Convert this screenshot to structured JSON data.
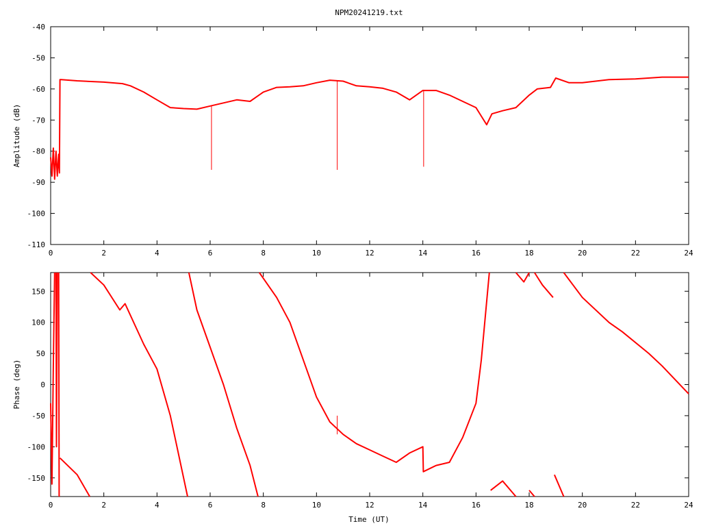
{
  "chart_data": [
    {
      "type": "line",
      "title": "NPM20241219.txt",
      "xlabel": "",
      "ylabel": "Amplitude (dB)",
      "xlim": [
        0,
        24
      ],
      "ylim": [
        -110,
        -40
      ],
      "xticks": [
        0,
        2,
        4,
        6,
        8,
        10,
        12,
        14,
        16,
        18,
        20,
        22,
        24
      ],
      "yticks": [
        -110,
        -100,
        -90,
        -80,
        -70,
        -60,
        -50,
        -40
      ],
      "grid": false,
      "series": [
        {
          "color": "#ff0000",
          "points": [
            [
              0.0,
              -82
            ],
            [
              0.05,
              -88
            ],
            [
              0.1,
              -79
            ],
            [
              0.15,
              -89
            ],
            [
              0.2,
              -80
            ],
            [
              0.25,
              -88
            ],
            [
              0.3,
              -81
            ],
            [
              0.33,
              -87
            ],
            [
              0.35,
              -57
            ],
            [
              0.4,
              -57
            ],
            [
              1.0,
              -57.4
            ],
            [
              2.0,
              -57.8
            ],
            [
              2.7,
              -58.3
            ],
            [
              3.0,
              -59
            ],
            [
              3.5,
              -61
            ],
            [
              4.0,
              -63.5
            ],
            [
              4.5,
              -66
            ],
            [
              5.0,
              -66.3
            ],
            [
              5.5,
              -66.5
            ],
            [
              6.0,
              -65.5
            ],
            [
              6.5,
              -64.5
            ],
            [
              7.0,
              -63.5
            ],
            [
              7.5,
              -64
            ],
            [
              8.0,
              -61
            ],
            [
              8.5,
              -59.5
            ],
            [
              9.0,
              -59.3
            ],
            [
              9.5,
              -59
            ],
            [
              10.0,
              -58
            ],
            [
              10.5,
              -57.2
            ],
            [
              11.0,
              -57.5
            ],
            [
              11.5,
              -59
            ],
            [
              12.0,
              -59.3
            ],
            [
              12.5,
              -59.8
            ],
            [
              13.0,
              -61
            ],
            [
              13.5,
              -63.5
            ],
            [
              14.0,
              -60.5
            ],
            [
              14.5,
              -60.5
            ],
            [
              15.0,
              -62
            ],
            [
              15.5,
              -64
            ],
            [
              16.0,
              -66
            ],
            [
              16.4,
              -71.5
            ],
            [
              16.6,
              -68
            ],
            [
              17.0,
              -67
            ],
            [
              17.5,
              -66
            ],
            [
              18.0,
              -62
            ],
            [
              18.3,
              -60
            ],
            [
              18.8,
              -59.5
            ],
            [
              19.0,
              -56.5
            ],
            [
              19.5,
              -58
            ],
            [
              20.0,
              -58
            ],
            [
              21.0,
              -57
            ],
            [
              22.0,
              -56.8
            ],
            [
              23.0,
              -56.2
            ],
            [
              24.0,
              -56.2
            ]
          ],
          "spikes": [
            [
              6.05,
              -86
            ],
            [
              10.78,
              -86
            ],
            [
              14.03,
              -85
            ]
          ]
        }
      ]
    },
    {
      "type": "line",
      "title": "",
      "xlabel": "Time (UT)",
      "ylabel": "Phase (deg)",
      "xlim": [
        0,
        24
      ],
      "ylim": [
        -180,
        180
      ],
      "xticks": [
        0,
        2,
        4,
        6,
        8,
        10,
        12,
        14,
        16,
        18,
        20,
        22,
        24
      ],
      "yticks": [
        -150,
        -100,
        -50,
        0,
        50,
        100,
        150
      ],
      "grid": false,
      "series": [
        {
          "color": "#ff0000",
          "segments": [
            [
              [
                0.0,
                -30
              ],
              [
                0.05,
                -160
              ],
              [
                0.1,
                30
              ],
              [
                0.15,
                180
              ]
            ],
            [
              [
                0.2,
                180
              ],
              [
                0.22,
                -100
              ],
              [
                0.25,
                180
              ]
            ],
            [
              [
                0.3,
                180
              ],
              [
                0.32,
                -180
              ]
            ],
            [
              [
                0.35,
                -118
              ],
              [
                1.0,
                -145
              ],
              [
                1.47,
                -180
              ]
            ],
            [
              [
                1.5,
                180
              ],
              [
                2.0,
                160
              ],
              [
                2.6,
                120
              ],
              [
                2.8,
                130
              ],
              [
                3.5,
                65
              ],
              [
                4.0,
                25
              ],
              [
                4.5,
                -50
              ],
              [
                5.15,
                -180
              ]
            ],
            [
              [
                5.2,
                180
              ],
              [
                5.5,
                120
              ],
              [
                6.0,
                60
              ],
              [
                6.5,
                0
              ],
              [
                7.0,
                -70
              ],
              [
                7.5,
                -130
              ],
              [
                7.8,
                -180
              ]
            ],
            [
              [
                7.85,
                180
              ],
              [
                8.5,
                140
              ],
              [
                9.0,
                100
              ],
              [
                9.5,
                40
              ],
              [
                10.0,
                -20
              ],
              [
                10.5,
                -60
              ],
              [
                11.0,
                -80
              ],
              [
                11.5,
                -95
              ],
              [
                12.0,
                -105
              ],
              [
                12.5,
                -115
              ],
              [
                13.0,
                -125
              ],
              [
                13.5,
                -110
              ],
              [
                14.0,
                -100
              ],
              [
                14.02,
                -140
              ],
              [
                14.5,
                -130
              ],
              [
                15.0,
                -125
              ],
              [
                15.5,
                -85
              ],
              [
                16.0,
                -30
              ],
              [
                16.2,
                40
              ],
              [
                16.5,
                180
              ]
            ],
            [
              [
                16.55,
                -170
              ],
              [
                17.0,
                -155
              ],
              [
                17.5,
                -180
              ]
            ],
            [
              [
                17.5,
                180
              ],
              [
                17.8,
                165
              ],
              [
                18.0,
                180
              ]
            ],
            [
              [
                18.0,
                -170
              ],
              [
                18.2,
                -180
              ]
            ],
            [
              [
                18.2,
                180
              ],
              [
                18.5,
                160
              ],
              [
                18.9,
                140
              ]
            ],
            [
              [
                18.95,
                -145
              ],
              [
                19.3,
                -180
              ]
            ],
            [
              [
                19.3,
                180
              ],
              [
                20.0,
                140
              ],
              [
                21.0,
                100
              ],
              [
                21.5,
                85
              ],
              [
                22.5,
                50
              ],
              [
                23.0,
                30
              ],
              [
                24.0,
                -15
              ]
            ]
          ],
          "spikes": [
            [
              10.78,
              -80,
              -50
            ]
          ]
        }
      ]
    }
  ]
}
